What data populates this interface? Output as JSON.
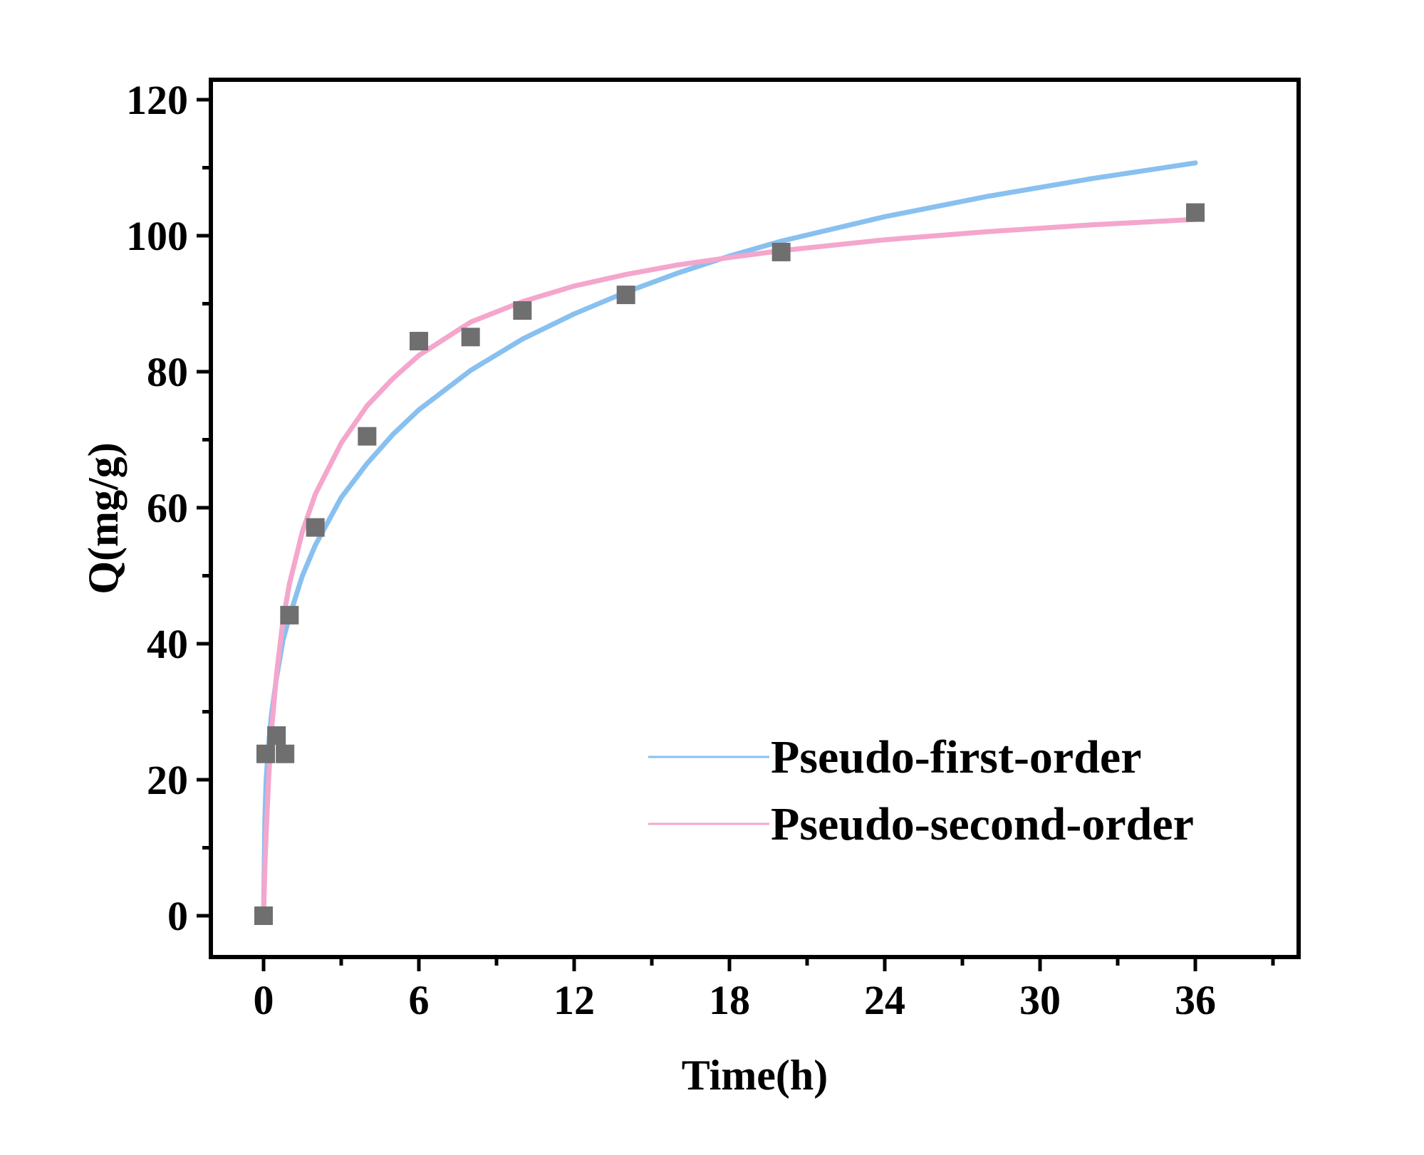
{
  "chart_data": {
    "type": "scatter",
    "title": "",
    "xlabel": "Time(h)",
    "ylabel": "Q(mg/g)",
    "xlim": [
      -2,
      39
    ],
    "ylim": [
      -6,
      123
    ],
    "x_ticks": [
      0,
      6,
      12,
      18,
      24,
      30,
      36
    ],
    "x_tick_labels": [
      "0",
      "6",
      "12",
      "18",
      "24",
      "30",
      "36"
    ],
    "x_minor_ticks": [
      3,
      9,
      15,
      21,
      27,
      33,
      39
    ],
    "y_ticks": [
      0,
      20,
      40,
      60,
      80,
      100,
      120
    ],
    "y_tick_labels": [
      "0",
      "20",
      "40",
      "60",
      "80",
      "100",
      "120"
    ],
    "y_minor_ticks": [
      10,
      30,
      50,
      70,
      90,
      110
    ],
    "grid": false,
    "legend_position": "bottom-right",
    "scatter": {
      "color": "#6f6f6f",
      "points": [
        {
          "x": 0,
          "y": 0
        },
        {
          "x": 0.083,
          "y": 23.8
        },
        {
          "x": 0.5,
          "y": 26.5
        },
        {
          "x": 0.83,
          "y": 23.8
        },
        {
          "x": 1,
          "y": 44.2
        },
        {
          "x": 2,
          "y": 57.1
        },
        {
          "x": 4,
          "y": 70.5
        },
        {
          "x": 6,
          "y": 84.5
        },
        {
          "x": 8,
          "y": 85.1
        },
        {
          "x": 10,
          "y": 89.0
        },
        {
          "x": 14,
          "y": 91.3
        },
        {
          "x": 20,
          "y": 97.6
        },
        {
          "x": 36,
          "y": 103.4
        }
      ]
    },
    "series": [
      {
        "name": "Pseudo-first-order",
        "color": "#88c0f0",
        "points": [
          [
            0,
            0
          ],
          [
            0.05,
            14
          ],
          [
            0.1,
            20
          ],
          [
            0.2,
            25.5
          ],
          [
            0.3,
            29.5
          ],
          [
            0.5,
            35
          ],
          [
            0.75,
            40.5
          ],
          [
            1,
            44
          ],
          [
            1.5,
            50
          ],
          [
            2,
            54.5
          ],
          [
            3,
            61.5
          ],
          [
            4,
            66.5
          ],
          [
            5,
            70.8
          ],
          [
            6,
            74.4
          ],
          [
            8,
            80.2
          ],
          [
            10,
            84.8
          ],
          [
            12,
            88.5
          ],
          [
            14,
            91.7
          ],
          [
            16,
            94.5
          ],
          [
            18,
            97.0
          ],
          [
            20,
            99.2
          ],
          [
            24,
            102.8
          ],
          [
            28,
            105.8
          ],
          [
            32,
            108.4
          ],
          [
            36,
            110.7
          ]
        ]
      },
      {
        "name": "Pseudo-second-order",
        "color": "#f4a6cc",
        "points": [
          [
            0,
            0
          ],
          [
            0.05,
            7
          ],
          [
            0.1,
            12
          ],
          [
            0.2,
            20.5
          ],
          [
            0.3,
            27
          ],
          [
            0.5,
            35.5
          ],
          [
            0.75,
            43.5
          ],
          [
            1,
            48.8
          ],
          [
            1.5,
            56.5
          ],
          [
            2,
            62
          ],
          [
            3,
            69.5
          ],
          [
            4,
            75
          ],
          [
            5,
            79
          ],
          [
            6,
            82.4
          ],
          [
            8,
            87.3
          ],
          [
            10,
            90.3
          ],
          [
            12,
            92.6
          ],
          [
            14,
            94.3
          ],
          [
            16,
            95.7
          ],
          [
            18,
            96.8
          ],
          [
            20,
            97.8
          ],
          [
            24,
            99.4
          ],
          [
            28,
            100.6
          ],
          [
            32,
            101.6
          ],
          [
            36,
            102.4
          ]
        ]
      }
    ]
  }
}
